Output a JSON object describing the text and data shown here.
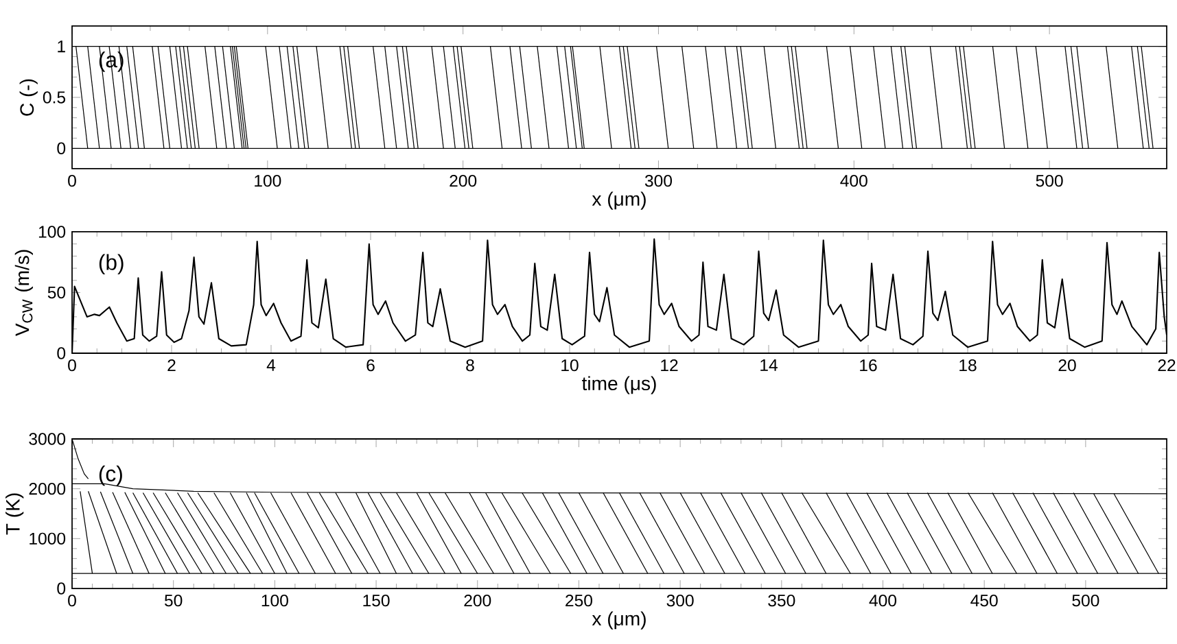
{
  "chart_data": [
    {
      "type": "line",
      "ylabel": "C (-)",
      "xlabel": "x (μm)",
      "annotations": [
        "(a)"
      ],
      "color": "#000000",
      "xlim": [
        0,
        560
      ],
      "ylim": [
        -0.2,
        1.2
      ],
      "xticks": [
        0,
        100,
        200,
        300,
        400,
        500
      ],
      "yticks": [
        0,
        0.5,
        1
      ],
      "series": [
        {
          "x": [
            0,
            560
          ],
          "values": [
            1,
            1
          ]
        },
        {
          "x": [
            0,
            560
          ],
          "values": [
            0,
            0
          ]
        },
        {
          "x": [
            2,
            8
          ],
          "values": [
            1,
            0
          ]
        },
        {
          "x": [
            8,
            14
          ],
          "values": [
            1,
            0
          ]
        },
        {
          "x": [
            14,
            20
          ],
          "values": [
            1,
            0
          ]
        },
        {
          "x": [
            19,
            25
          ],
          "values": [
            1,
            0
          ]
        },
        {
          "x": [
            24,
            30
          ],
          "values": [
            1,
            0
          ]
        },
        {
          "x": [
            28,
            34
          ],
          "values": [
            1,
            0
          ]
        },
        {
          "x": [
            31,
            37
          ],
          "values": [
            1,
            0
          ]
        },
        {
          "x": [
            41,
            47
          ],
          "values": [
            1,
            0
          ]
        },
        {
          "x": [
            44,
            50
          ],
          "values": [
            1,
            0
          ]
        },
        {
          "x": [
            50,
            56
          ],
          "values": [
            1,
            0
          ]
        },
        {
          "x": [
            53,
            59
          ],
          "values": [
            1,
            0
          ]
        },
        {
          "x": [
            55,
            61
          ],
          "values": [
            1,
            0
          ]
        },
        {
          "x": [
            57,
            63
          ],
          "values": [
            1,
            0
          ]
        },
        {
          "x": [
            59,
            65
          ],
          "values": [
            1,
            0
          ]
        },
        {
          "x": [
            68,
            74
          ],
          "values": [
            1,
            0
          ]
        },
        {
          "x": [
            73,
            79
          ],
          "values": [
            1,
            0
          ]
        },
        {
          "x": [
            77,
            83
          ],
          "values": [
            1,
            0
          ]
        },
        {
          "x": [
            81,
            87
          ],
          "values": [
            1,
            0
          ]
        },
        {
          "x": [
            82,
            88
          ],
          "values": [
            1,
            0
          ]
        },
        {
          "x": [
            83,
            89
          ],
          "values": [
            1,
            0
          ]
        },
        {
          "x": [
            84,
            90
          ],
          "values": [
            1,
            0
          ]
        },
        {
          "x": [
            99,
            105
          ],
          "values": [
            1,
            0
          ]
        },
        {
          "x": [
            106,
            112
          ],
          "values": [
            1,
            0
          ]
        },
        {
          "x": [
            110,
            116
          ],
          "values": [
            1,
            0
          ]
        },
        {
          "x": [
            113,
            119
          ],
          "values": [
            1,
            0
          ]
        },
        {
          "x": [
            115,
            121
          ],
          "values": [
            1,
            0
          ]
        },
        {
          "x": [
            125,
            131
          ],
          "values": [
            1,
            0
          ]
        },
        {
          "x": [
            137,
            143
          ],
          "values": [
            1,
            0
          ]
        },
        {
          "x": [
            139,
            145
          ],
          "values": [
            1,
            0
          ]
        },
        {
          "x": [
            141,
            147
          ],
          "values": [
            1,
            0
          ]
        },
        {
          "x": [
            154,
            160
          ],
          "values": [
            1,
            0
          ]
        },
        {
          "x": [
            160,
            166
          ],
          "values": [
            1,
            0
          ]
        },
        {
          "x": [
            166,
            172
          ],
          "values": [
            1,
            0
          ]
        },
        {
          "x": [
            169,
            175
          ],
          "values": [
            1,
            0
          ]
        },
        {
          "x": [
            171,
            177
          ],
          "values": [
            1,
            0
          ]
        },
        {
          "x": [
            184,
            190
          ],
          "values": [
            1,
            0
          ]
        },
        {
          "x": [
            190,
            196
          ],
          "values": [
            1,
            0
          ]
        },
        {
          "x": [
            195,
            201
          ],
          "values": [
            1,
            0
          ]
        },
        {
          "x": [
            197,
            203
          ],
          "values": [
            1,
            0
          ]
        },
        {
          "x": [
            199,
            205
          ],
          "values": [
            1,
            0
          ]
        },
        {
          "x": [
            214,
            220
          ],
          "values": [
            1,
            0
          ]
        },
        {
          "x": [
            224,
            230
          ],
          "values": [
            1,
            0
          ]
        },
        {
          "x": [
            229,
            235
          ],
          "values": [
            1,
            0
          ]
        },
        {
          "x": [
            238,
            244
          ],
          "values": [
            1,
            0
          ]
        },
        {
          "x": [
            248,
            254
          ],
          "values": [
            1,
            0
          ]
        },
        {
          "x": [
            252,
            258
          ],
          "values": [
            1,
            0
          ]
        },
        {
          "x": [
            255,
            261
          ],
          "values": [
            1,
            0
          ]
        },
        {
          "x": [
            256,
            262
          ],
          "values": [
            1,
            0
          ]
        },
        {
          "x": [
            270,
            276
          ],
          "values": [
            1,
            0
          ]
        },
        {
          "x": [
            280,
            286
          ],
          "values": [
            1,
            0
          ]
        },
        {
          "x": [
            282,
            288
          ],
          "values": [
            1,
            0
          ]
        },
        {
          "x": [
            284,
            290
          ],
          "values": [
            1,
            0
          ]
        },
        {
          "x": [
            299,
            305
          ],
          "values": [
            1,
            0
          ]
        },
        {
          "x": [
            312,
            318
          ],
          "values": [
            1,
            0
          ]
        },
        {
          "x": [
            324,
            330
          ],
          "values": [
            1,
            0
          ]
        },
        {
          "x": [
            334,
            340
          ],
          "values": [
            1,
            0
          ]
        },
        {
          "x": [
            340,
            346
          ],
          "values": [
            1,
            0
          ]
        },
        {
          "x": [
            342,
            348
          ],
          "values": [
            1,
            0
          ]
        },
        {
          "x": [
            354,
            360
          ],
          "values": [
            1,
            0
          ]
        },
        {
          "x": [
            366,
            372
          ],
          "values": [
            1,
            0
          ]
        },
        {
          "x": [
            368,
            374
          ],
          "values": [
            1,
            0
          ]
        },
        {
          "x": [
            370,
            376
          ],
          "values": [
            1,
            0
          ]
        },
        {
          "x": [
            386,
            392
          ],
          "values": [
            1,
            0
          ]
        },
        {
          "x": [
            398,
            404
          ],
          "values": [
            1,
            0
          ]
        },
        {
          "x": [
            410,
            416
          ],
          "values": [
            1,
            0
          ]
        },
        {
          "x": [
            419,
            425
          ],
          "values": [
            1,
            0
          ]
        },
        {
          "x": [
            424,
            430
          ],
          "values": [
            1,
            0
          ]
        },
        {
          "x": [
            426,
            432
          ],
          "values": [
            1,
            0
          ]
        },
        {
          "x": [
            439,
            445
          ],
          "values": [
            1,
            0
          ]
        },
        {
          "x": [
            452,
            458
          ],
          "values": [
            1,
            0
          ]
        },
        {
          "x": [
            454,
            460
          ],
          "values": [
            1,
            0
          ]
        },
        {
          "x": [
            456,
            462
          ],
          "values": [
            1,
            0
          ]
        },
        {
          "x": [
            471,
            477
          ],
          "values": [
            1,
            0
          ]
        },
        {
          "x": [
            483,
            489
          ],
          "values": [
            1,
            0
          ]
        },
        {
          "x": [
            493,
            499
          ],
          "values": [
            1,
            0
          ]
        },
        {
          "x": [
            508,
            514
          ],
          "values": [
            1,
            0
          ]
        },
        {
          "x": [
            511,
            517
          ],
          "values": [
            1,
            0
          ]
        },
        {
          "x": [
            514,
            520
          ],
          "values": [
            1,
            0
          ]
        },
        {
          "x": [
            529,
            535
          ],
          "values": [
            1,
            0
          ]
        },
        {
          "x": [
            542,
            548
          ],
          "values": [
            1,
            0
          ]
        },
        {
          "x": [
            545,
            551
          ],
          "values": [
            1,
            0
          ]
        },
        {
          "x": [
            547,
            553
          ],
          "values": [
            1,
            0
          ]
        }
      ]
    },
    {
      "type": "line",
      "ylabel": "V$_{CW}$ (m/s)",
      "xlabel": "time (μs)",
      "annotations": [
        "(b)"
      ],
      "color": "#000000",
      "xlim": [
        0,
        22
      ],
      "ylim": [
        0,
        100
      ],
      "xticks": [
        0,
        2,
        4,
        6,
        8,
        10,
        12,
        14,
        16,
        18,
        20,
        22
      ],
      "yticks": [
        0,
        50,
        100
      ],
      "series": [
        {
          "x": [
            0,
            0.05,
            0.15,
            0.3,
            0.45,
            0.55,
            0.75,
            0.9,
            1.1,
            1.25,
            1.33,
            1.42,
            1.55,
            1.7,
            1.8,
            1.9,
            2.05,
            2.2,
            2.35,
            2.45,
            2.55,
            2.65,
            2.8,
            2.95,
            3.2,
            3.5,
            3.65,
            3.72,
            3.8,
            3.9,
            4.05,
            4.2,
            4.4,
            4.6,
            4.72,
            4.82,
            4.95,
            5.1,
            5.25,
            5.5,
            5.85,
            5.97,
            6.05,
            6.15,
            6.3,
            6.45,
            6.7,
            6.9,
            7.05,
            7.15,
            7.25,
            7.4,
            7.6,
            7.9,
            8.25,
            8.35,
            8.45,
            8.55,
            8.7,
            8.85,
            9.05,
            9.2,
            9.3,
            9.42,
            9.55,
            9.7,
            9.85,
            10.05,
            10.3,
            10.4,
            10.5,
            10.6,
            10.75,
            10.9,
            11.2,
            11.6,
            11.7,
            11.8,
            11.9,
            12.05,
            12.2,
            12.45,
            12.6,
            12.68,
            12.78,
            12.95,
            13.1,
            13.25,
            13.5,
            13.7,
            13.8,
            13.9,
            14.0,
            14.15,
            14.3,
            14.6,
            15.0,
            15.1,
            15.2,
            15.3,
            15.45,
            15.6,
            15.85,
            16.0,
            16.07,
            16.17,
            16.35,
            16.5,
            16.65,
            16.9,
            17.1,
            17.2,
            17.3,
            17.4,
            17.55,
            17.7,
            18.0,
            18.4,
            18.5,
            18.6,
            18.7,
            18.85,
            19.0,
            19.25,
            19.4,
            19.5,
            19.6,
            19.75,
            19.9,
            20.05,
            20.35,
            20.7,
            20.8,
            20.9,
            21.0,
            21.1,
            21.3,
            21.6,
            21.78,
            21.85,
            21.95,
            22
          ],
          "values": [
            0,
            55,
            45,
            30,
            32,
            31,
            38,
            25,
            10,
            12,
            62,
            15,
            10,
            14,
            67,
            15,
            9,
            12,
            35,
            79,
            30,
            24,
            58,
            12,
            6,
            7,
            40,
            92,
            40,
            31,
            41,
            25,
            10,
            14,
            77,
            25,
            21,
            61,
            12,
            5,
            7,
            90,
            40,
            32,
            43,
            25,
            10,
            15,
            83,
            25,
            22,
            53,
            10,
            5,
            10,
            93,
            40,
            32,
            40,
            22,
            10,
            15,
            74,
            22,
            19,
            65,
            12,
            7,
            14,
            83,
            32,
            26,
            54,
            15,
            5,
            10,
            94,
            40,
            32,
            41,
            22,
            10,
            15,
            75,
            22,
            19,
            65,
            12,
            7,
            14,
            84,
            33,
            27,
            52,
            15,
            5,
            10,
            93,
            40,
            32,
            40,
            22,
            10,
            15,
            74,
            22,
            19,
            65,
            12,
            7,
            14,
            84,
            33,
            27,
            51,
            15,
            5,
            10,
            92,
            40,
            32,
            41,
            22,
            10,
            15,
            77,
            25,
            21,
            61,
            12,
            5,
            10,
            91,
            40,
            32,
            43,
            22,
            7,
            20,
            83,
            30,
            15
          ]
        }
      ]
    },
    {
      "type": "line",
      "ylabel": "T (K)",
      "xlabel": "x (μm)",
      "annotations": [
        "(c)"
      ],
      "color": "#000000",
      "xlim": [
        0,
        540
      ],
      "ylim": [
        0,
        3000
      ],
      "xticks": [
        0,
        50,
        100,
        150,
        200,
        250,
        300,
        350,
        400,
        450,
        500
      ],
      "yticks": [
        0,
        1000,
        2000,
        3000
      ],
      "series": [
        {
          "x": [
            0,
            540
          ],
          "values": [
            300,
            300
          ]
        },
        {
          "x": [
            0,
            3,
            6,
            8
          ],
          "values": [
            3000,
            2600,
            2300,
            2200
          ]
        },
        {
          "x": [
            0,
            8,
            16,
            30,
            60,
            100,
            200,
            540
          ],
          "values": [
            2100,
            2100,
            2100,
            2000,
            1950,
            1930,
            1920,
            1900
          ]
        },
        {
          "x": [
            4,
            10
          ],
          "values": [
            1950,
            300
          ]
        },
        {
          "x": [
            8,
            22
          ],
          "values": [
            1950,
            300
          ]
        },
        {
          "x": [
            14,
            30
          ],
          "values": [
            1940,
            300
          ]
        },
        {
          "x": [
            20,
            38
          ],
          "values": [
            1930,
            300
          ]
        },
        {
          "x": [
            26,
            46
          ],
          "values": [
            1930,
            300
          ]
        },
        {
          "x": [
            30,
            52
          ],
          "values": [
            1920,
            300
          ]
        },
        {
          "x": [
            35,
            58
          ],
          "values": [
            1920,
            300
          ]
        },
        {
          "x": [
            40,
            64
          ],
          "values": [
            1920,
            300
          ]
        },
        {
          "x": [
            46,
            70
          ],
          "values": [
            1920,
            300
          ]
        },
        {
          "x": [
            52,
            76
          ],
          "values": [
            1920,
            300
          ]
        },
        {
          "x": [
            57,
            82
          ],
          "values": [
            1920,
            300
          ]
        },
        {
          "x": [
            62,
            88
          ],
          "values": [
            1920,
            300
          ]
        },
        {
          "x": [
            70,
            94
          ],
          "values": [
            1920,
            300
          ]
        },
        {
          "x": [
            78,
            100
          ],
          "values": [
            1920,
            300
          ]
        },
        {
          "x": [
            86,
            106
          ],
          "values": [
            1920,
            300
          ]
        },
        {
          "x": [
            90,
            112
          ],
          "values": [
            1920,
            300
          ]
        },
        {
          "x": [
            98,
            120
          ],
          "values": [
            1920,
            300
          ]
        },
        {
          "x": [
            108,
            130
          ],
          "values": [
            1920,
            300
          ]
        },
        {
          "x": [
            116,
            138
          ],
          "values": [
            1920,
            300
          ]
        },
        {
          "x": [
            122,
            146
          ],
          "values": [
            1920,
            300
          ]
        },
        {
          "x": [
            130,
            152
          ],
          "values": [
            1920,
            300
          ]
        },
        {
          "x": [
            140,
            160
          ],
          "values": [
            1920,
            300
          ]
        },
        {
          "x": [
            146,
            168
          ],
          "values": [
            1920,
            300
          ]
        },
        {
          "x": [
            152,
            176
          ],
          "values": [
            1920,
            300
          ]
        },
        {
          "x": [
            160,
            184
          ],
          "values": [
            1920,
            300
          ]
        },
        {
          "x": [
            170,
            192
          ],
          "values": [
            1920,
            300
          ]
        },
        {
          "x": [
            176,
            200
          ],
          "values": [
            1920,
            300
          ]
        },
        {
          "x": [
            184,
            208
          ],
          "values": [
            1920,
            300
          ]
        },
        {
          "x": [
            196,
            218
          ],
          "values": [
            1920,
            300
          ]
        },
        {
          "x": [
            204,
            226
          ],
          "values": [
            1920,
            300
          ]
        },
        {
          "x": [
            212,
            236
          ],
          "values": [
            1920,
            300
          ]
        },
        {
          "x": [
            222,
            246
          ],
          "values": [
            1920,
            300
          ]
        },
        {
          "x": [
            232,
            254
          ],
          "values": [
            1920,
            300
          ]
        },
        {
          "x": [
            240,
            262
          ],
          "values": [
            1920,
            300
          ]
        },
        {
          "x": [
            250,
            272
          ],
          "values": [
            1920,
            300
          ]
        },
        {
          "x": [
            262,
            284
          ],
          "values": [
            1920,
            300
          ]
        },
        {
          "x": [
            270,
            292
          ],
          "values": [
            1920,
            300
          ]
        },
        {
          "x": [
            280,
            302
          ],
          "values": [
            1920,
            300
          ]
        },
        {
          "x": [
            290,
            312
          ],
          "values": [
            1920,
            300
          ]
        },
        {
          "x": [
            300,
            322
          ],
          "values": [
            1920,
            300
          ]
        },
        {
          "x": [
            310,
            332
          ],
          "values": [
            1920,
            300
          ]
        },
        {
          "x": [
            320,
            342
          ],
          "values": [
            1920,
            300
          ]
        },
        {
          "x": [
            330,
            352
          ],
          "values": [
            1920,
            300
          ]
        },
        {
          "x": [
            340,
            362
          ],
          "values": [
            1920,
            300
          ]
        },
        {
          "x": [
            350,
            372
          ],
          "values": [
            1920,
            300
          ]
        },
        {
          "x": [
            360,
            384
          ],
          "values": [
            1920,
            300
          ]
        },
        {
          "x": [
            372,
            394
          ],
          "values": [
            1920,
            300
          ]
        },
        {
          "x": [
            382,
            404
          ],
          "values": [
            1920,
            300
          ]
        },
        {
          "x": [
            392,
            414
          ],
          "values": [
            1920,
            300
          ]
        },
        {
          "x": [
            402,
            424
          ],
          "values": [
            1920,
            300
          ]
        },
        {
          "x": [
            412,
            434
          ],
          "values": [
            1920,
            300
          ]
        },
        {
          "x": [
            422,
            444
          ],
          "values": [
            1920,
            300
          ]
        },
        {
          "x": [
            432,
            454
          ],
          "values": [
            1920,
            300
          ]
        },
        {
          "x": [
            442,
            466
          ],
          "values": [
            1920,
            300
          ]
        },
        {
          "x": [
            454,
            476
          ],
          "values": [
            1920,
            300
          ]
        },
        {
          "x": [
            464,
            486
          ],
          "values": [
            1920,
            300
          ]
        },
        {
          "x": [
            474,
            496
          ],
          "values": [
            1920,
            300
          ]
        },
        {
          "x": [
            484,
            506
          ],
          "values": [
            1920,
            300
          ]
        },
        {
          "x": [
            494,
            516
          ],
          "values": [
            1920,
            300
          ]
        },
        {
          "x": [
            504,
            526
          ],
          "values": [
            1900,
            300
          ]
        },
        {
          "x": [
            514,
            536
          ],
          "values": [
            1900,
            300
          ]
        }
      ]
    }
  ]
}
